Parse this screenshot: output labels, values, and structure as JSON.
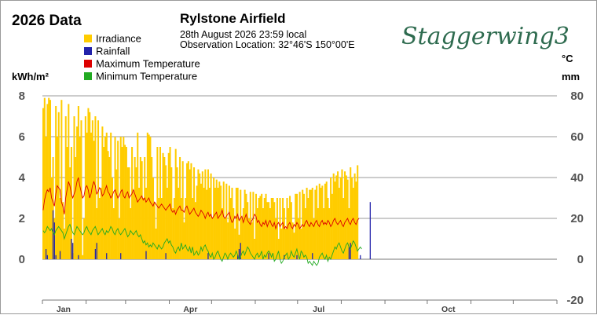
{
  "header": {
    "year_title": "2026 Data",
    "station": "Rylstone Airfield",
    "datetime": "28th August 2026  23:59 local",
    "location": "Observation Location: 32°46'S 150°00'E",
    "brand": "Staggerwing3"
  },
  "axes": {
    "left_unit": "kWh/m²",
    "right_unit_top": "°C",
    "right_unit_bottom": "mm"
  },
  "colors": {
    "irradiance": "#ffcc00",
    "rainfall": "#2222aa",
    "max_temp": "#dd0000",
    "min_temp": "#22aa22",
    "brand": "#2e6b4f"
  },
  "chart_data": {
    "type": "bar",
    "title": "2026 Data",
    "x_type": "day_of_year",
    "xlim": [
      "2026-01-01",
      "2026-12-31"
    ],
    "x_tick_labels": [
      "Jan",
      "Apr",
      "Jul",
      "Oct"
    ],
    "left_axis": {
      "label": "kWh/m²",
      "ylim": [
        0,
        8
      ],
      "ticks": [
        0,
        2,
        4,
        6,
        8
      ]
    },
    "right_axis": {
      "label": "°C / mm",
      "ylim": [
        -20,
        80
      ],
      "ticks": [
        -20,
        0,
        20,
        40,
        60,
        80
      ]
    },
    "grid": true,
    "legend_position": "top-left",
    "series": [
      {
        "name": "Irradiance",
        "type": "bar",
        "axis": "left",
        "start": "2026-01-01",
        "values": [
          7.4,
          7.9,
          6.0,
          7.6,
          7.9,
          7.8,
          4.0,
          5.0,
          2.0,
          7.5,
          6.0,
          7.2,
          3.0,
          7.8,
          2.8,
          1.5,
          7.0,
          5.5,
          7.6,
          4.5,
          5.5,
          0.3,
          7.0,
          5.0,
          6.5,
          7.5,
          6.0,
          6.8,
          0.2,
          2.0,
          7.0,
          6.2,
          7.4,
          7.2,
          6.2,
          6.8,
          5.8,
          7.0,
          2.5,
          6.8,
          3.0,
          3.5,
          6.5,
          5.5,
          6.0,
          6.2,
          5.3,
          5.0,
          6.2,
          4.0,
          2.5,
          6.0,
          4.4,
          5.8,
          2.0,
          6.0,
          5.5,
          6.0,
          5.6,
          5.5,
          4.5,
          4.5,
          2.5,
          5.5,
          3.3,
          5.0,
          4.5,
          6.2,
          3.5,
          5.0,
          4.8,
          3.0,
          5.0,
          3.5,
          6.2,
          6.1,
          6.0,
          5.0,
          4.0,
          2.8,
          1.5,
          5.5,
          3.0,
          5.5,
          3.0,
          5.2,
          5.0,
          4.6,
          3.5,
          5.2,
          5.5,
          4.5,
          2.5,
          3.0,
          5.4,
          4.5,
          3.5,
          5.0,
          3.0,
          4.8,
          1.8,
          3.0,
          4.7,
          4.8,
          4.4,
          4.7,
          3.0,
          4.5,
          2.8,
          3.6,
          4.4,
          4.2,
          3.7,
          4.3,
          3.5,
          4.4,
          3.4,
          4.4,
          3.5,
          4.2,
          2.0,
          4.0,
          3.5,
          3.9,
          3.5,
          3.8,
          3.6,
          2.5,
          3.8,
          2.0,
          3.7,
          1.8,
          3.6,
          3.0,
          3.5,
          2.5,
          1.5,
          3.5,
          3.5,
          1.2,
          3.4,
          2.0,
          2.5,
          3.4,
          3.2,
          2.8,
          2.0,
          3.3,
          1.8,
          3.3,
          1.0,
          3.2,
          2.5,
          3.0,
          3.1,
          3.2,
          2.5,
          3.0,
          3.2,
          2.8,
          2.8,
          2.5,
          3.0,
          3.0,
          2.8,
          2.0,
          3.0,
          1.0,
          3.0,
          1.5,
          3.0,
          2.5,
          1.5,
          3.0,
          2.5,
          3.1,
          2.8,
          1.8,
          1.3,
          3.2,
          3.2,
          2.0,
          3.3,
          1.5,
          3.4,
          3.2,
          2.5,
          3.5,
          3.0,
          3.4,
          3.4,
          3.5,
          2.0,
          3.4,
          3.6,
          2.5,
          3.7,
          3.5,
          3.6,
          2.5,
          3.7,
          3.8,
          3.0,
          2.5,
          4.0,
          3.2,
          4.2,
          3.8,
          4.1,
          4.3,
          3.5,
          4.0,
          4.4,
          3.0,
          4.3,
          4.1,
          3.9,
          2.5,
          4.5,
          4.0,
          3.5,
          4.2,
          3.8,
          4.6
        ]
      },
      {
        "name": "Rainfall",
        "type": "bar",
        "axis": "right",
        "start": "2026-01-01",
        "values": [
          0,
          0,
          5,
          2,
          0,
          0,
          0,
          24,
          18,
          2,
          0,
          0,
          4,
          0,
          0,
          0,
          0,
          0,
          0,
          0,
          10,
          8,
          0,
          0,
          0,
          2,
          0,
          0,
          0,
          0,
          0,
          0,
          0,
          0,
          0,
          0,
          0,
          5,
          8,
          0,
          0,
          0,
          0,
          0,
          0,
          3,
          0,
          0,
          0,
          0,
          0,
          0,
          0,
          0,
          0,
          3,
          0,
          0,
          0,
          0,
          0,
          0,
          0,
          0,
          0,
          0,
          0,
          0,
          0,
          0,
          0,
          0,
          0,
          4,
          0,
          0,
          0,
          0,
          0,
          0,
          0,
          0,
          0,
          0,
          0,
          0,
          0,
          3,
          0,
          0,
          0,
          0,
          0,
          0,
          0,
          0,
          0,
          0,
          0,
          0,
          0,
          0,
          0,
          0,
          0,
          0,
          0,
          0,
          0,
          0,
          0,
          0,
          0,
          0,
          0,
          0,
          0,
          3,
          0,
          0,
          0,
          0,
          0,
          0,
          0,
          0,
          0,
          0,
          0,
          0,
          0,
          0,
          0,
          0,
          0,
          0,
          0,
          0,
          2,
          5,
          8,
          0,
          0,
          0,
          0,
          0,
          0,
          0,
          0,
          0,
          0,
          0,
          0,
          0,
          0,
          0,
          0,
          0,
          0,
          0,
          3,
          0,
          0,
          0,
          0,
          0,
          0,
          0,
          0,
          0,
          0,
          2,
          0,
          0,
          0,
          0,
          0,
          0,
          0,
          0,
          2,
          0,
          0,
          0,
          0,
          0,
          0,
          0,
          0,
          0,
          0,
          3,
          0,
          0,
          0,
          0,
          0,
          0,
          0,
          0,
          0,
          0,
          0,
          0,
          0,
          0,
          0,
          0,
          0,
          0,
          0,
          0,
          0,
          0,
          0,
          0,
          0,
          6,
          8,
          0,
          0,
          0,
          0,
          0,
          0,
          2,
          0,
          0,
          0,
          0,
          0,
          0,
          28,
          0,
          0,
          0,
          0
        ]
      },
      {
        "name": "Maximum Temperature",
        "type": "line",
        "axis": "right",
        "start": "2026-01-01",
        "values": [
          24,
          29,
          32,
          34,
          33,
          35,
          30,
          28,
          26,
          32,
          36,
          35,
          34,
          28,
          26,
          22,
          30,
          34,
          38,
          36,
          32,
          30,
          32,
          34,
          38,
          40,
          36,
          33,
          30,
          31,
          35,
          36,
          34,
          30,
          32,
          36,
          38,
          36,
          32,
          33,
          35,
          34,
          31,
          32,
          34,
          36,
          33,
          32,
          30,
          31,
          33,
          34,
          32,
          30,
          31,
          33,
          34,
          31,
          30,
          32,
          33,
          30,
          31,
          32,
          34,
          32,
          30,
          28,
          29,
          30,
          31,
          29,
          30,
          28,
          29,
          30,
          28,
          27,
          26,
          28,
          27,
          26,
          25,
          26,
          27,
          26,
          25,
          24,
          25,
          26,
          27,
          24,
          23,
          24,
          22,
          24,
          25,
          26,
          24,
          24,
          23,
          25,
          26,
          24,
          22,
          23,
          24,
          25,
          23,
          22,
          21,
          22,
          24,
          23,
          22,
          20,
          22,
          23,
          21,
          22,
          20,
          21,
          22,
          23,
          20,
          21,
          22,
          24,
          21,
          20,
          21,
          22,
          23,
          20,
          18,
          19,
          21,
          20,
          22,
          19,
          20,
          21,
          18,
          20,
          22,
          19,
          18,
          17,
          19,
          20,
          22,
          21,
          18,
          19,
          17,
          16,
          18,
          17,
          19,
          16,
          18,
          19,
          17,
          16,
          18,
          15,
          17,
          18,
          16,
          17,
          18,
          15,
          16,
          15,
          17,
          18,
          16,
          15,
          17,
          16,
          18,
          17,
          15,
          16,
          17,
          16,
          18,
          19,
          17,
          16,
          18,
          17,
          16,
          18,
          19,
          17,
          16,
          18,
          19,
          17,
          18,
          17,
          19,
          18,
          16,
          17,
          19,
          20,
          18,
          17,
          18,
          19,
          17,
          16,
          18,
          19,
          20,
          18,
          17,
          19,
          20,
          18,
          17,
          19,
          20
        ]
      },
      {
        "name": "Minimum Temperature",
        "type": "line",
        "axis": "right",
        "start": "2026-01-01",
        "values": [
          14,
          13,
          14,
          16,
          15,
          14,
          15,
          13,
          12,
          14,
          15,
          16,
          15,
          14,
          13,
          10,
          12,
          14,
          16,
          17,
          15,
          13,
          12,
          14,
          16,
          15,
          14,
          13,
          12,
          13,
          15,
          16,
          14,
          13,
          12,
          14,
          15,
          16,
          14,
          12,
          13,
          14,
          15,
          13,
          12,
          14,
          13,
          14,
          16,
          15,
          13,
          12,
          14,
          15,
          13,
          12,
          13,
          14,
          15,
          13,
          11,
          12,
          14,
          13,
          12,
          13,
          14,
          12,
          11,
          12,
          10,
          8,
          9,
          7,
          8,
          6,
          7,
          6,
          8,
          7,
          6,
          5,
          7,
          6,
          5,
          6,
          8,
          9,
          10,
          8,
          9,
          7,
          6,
          4,
          3,
          5,
          6,
          4,
          8,
          5,
          6,
          7,
          5,
          4,
          6,
          3,
          6,
          2,
          3,
          4,
          2,
          3,
          6,
          4,
          6,
          7,
          5,
          4,
          2,
          1,
          3,
          0,
          1,
          3,
          4,
          2,
          0,
          -1,
          1,
          3,
          2,
          0,
          2,
          3,
          2,
          1,
          2,
          4,
          2,
          0,
          1,
          3,
          4,
          2,
          4,
          6,
          5,
          3,
          2,
          1,
          0,
          2,
          3,
          1,
          2,
          4,
          0,
          2,
          1,
          3,
          4,
          3,
          1,
          3,
          -1,
          0,
          2,
          4,
          0,
          -2,
          -1,
          1,
          2,
          3,
          0,
          1,
          4,
          2,
          1,
          3,
          5,
          2,
          0,
          4,
          3,
          1,
          2,
          1,
          -2,
          -1,
          -2,
          -3,
          -1,
          -2,
          -3,
          -2,
          1,
          2,
          3,
          1,
          0,
          2,
          -1,
          1,
          0,
          2,
          4,
          6,
          5,
          7,
          8,
          6,
          4,
          3,
          5,
          7,
          8,
          6,
          5,
          7,
          9,
          8,
          6,
          4,
          5,
          6,
          5
        ]
      }
    ],
    "right_axis_ticks_text": [
      "80",
      "60",
      "40",
      "20",
      "0",
      "-20"
    ],
    "left_axis_ticks_text": [
      "8",
      "6",
      "4",
      "2",
      "0"
    ]
  }
}
